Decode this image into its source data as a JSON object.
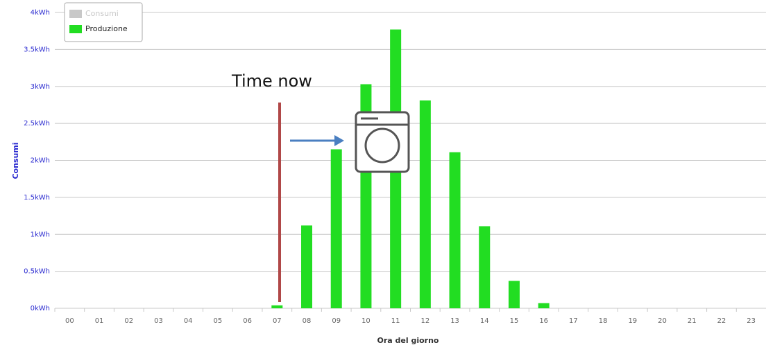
{
  "chart_data": {
    "type": "bar",
    "categories": [
      "00",
      "01",
      "02",
      "03",
      "04",
      "05",
      "06",
      "07",
      "08",
      "09",
      "10",
      "11",
      "12",
      "13",
      "14",
      "15",
      "16",
      "17",
      "18",
      "19",
      "20",
      "21",
      "22",
      "23"
    ],
    "series": [
      {
        "name": "Consumi",
        "color": "#c8c8c8",
        "values": [
          null,
          null,
          null,
          null,
          null,
          null,
          null,
          null,
          null,
          null,
          null,
          null,
          null,
          null,
          null,
          null,
          null,
          null,
          null,
          null,
          null,
          null,
          null,
          null
        ]
      },
      {
        "name": "Produzione",
        "color": "#22dd22",
        "values": [
          0,
          0,
          0,
          0,
          0,
          0,
          0,
          0.04,
          1.12,
          2.15,
          3.03,
          3.77,
          2.81,
          2.11,
          1.11,
          0.37,
          0.07,
          0,
          0,
          0,
          0,
          0,
          0,
          0
        ]
      }
    ],
    "ylim": [
      0,
      4
    ],
    "yticks": [
      {
        "value": 0,
        "label": "0kWh"
      },
      {
        "value": 0.5,
        "label": "0.5kWh"
      },
      {
        "value": 1,
        "label": "1kWh"
      },
      {
        "value": 1.5,
        "label": "1.5kWh"
      },
      {
        "value": 2,
        "label": "2kWh"
      },
      {
        "value": 2.5,
        "label": "2.5kWh"
      },
      {
        "value": 3,
        "label": "3kWh"
      },
      {
        "value": 3.5,
        "label": "3.5kWh"
      },
      {
        "value": 4,
        "label": "4kWh"
      }
    ],
    "grid": true,
    "ylabel": "Consumi",
    "xlabel": "Ora del giorno",
    "annotation": "Time now"
  }
}
